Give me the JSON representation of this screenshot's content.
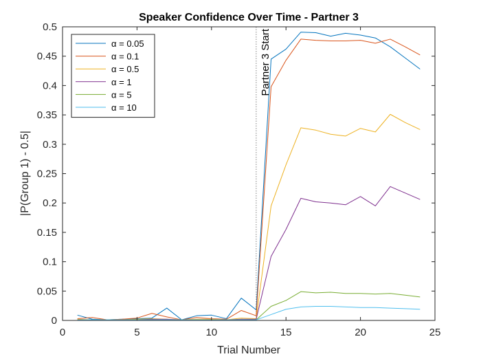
{
  "chart_data": {
    "type": "line",
    "title": "Speaker Confidence Over Time - Partner 3",
    "xlabel": "Trial Number",
    "ylabel": "|P(Group 1) - 0.5|",
    "xlim": [
      0,
      25
    ],
    "ylim": [
      0,
      0.5
    ],
    "xticks": [
      0,
      5,
      10,
      15,
      20,
      25
    ],
    "yticks": [
      0,
      0.05,
      0.1,
      0.15,
      0.2,
      0.25,
      0.3,
      0.35,
      0.4,
      0.45,
      0.5
    ],
    "grid": false,
    "legend_position": "top-left",
    "x": [
      1,
      2,
      3,
      4,
      5,
      6,
      7,
      8,
      9,
      10,
      11,
      12,
      13,
      14,
      15,
      16,
      17,
      18,
      19,
      20,
      21,
      22,
      23,
      24
    ],
    "series": [
      {
        "name": "α = 0.05",
        "color": "#0072BD",
        "values": [
          0.009,
          0.002,
          0.001,
          0.002,
          0.003,
          0.004,
          0.021,
          0.001,
          0.008,
          0.009,
          0.003,
          0.038,
          0.018,
          0.445,
          0.462,
          0.491,
          0.49,
          0.484,
          0.489,
          0.486,
          0.481,
          0.466,
          0.447,
          0.428
        ]
      },
      {
        "name": "α = 0.1",
        "color": "#D95319",
        "values": [
          0.003,
          0.005,
          0.001,
          0.002,
          0.004,
          0.012,
          0.006,
          0.001,
          0.005,
          0.003,
          0.002,
          0.017,
          0.008,
          0.398,
          0.443,
          0.479,
          0.477,
          0.476,
          0.476,
          0.477,
          0.472,
          0.479,
          0.466,
          0.452
        ]
      },
      {
        "name": "α = 0.5",
        "color": "#EDB120",
        "values": [
          0.002,
          0.001,
          0.001,
          0.001,
          0.002,
          0.003,
          0.002,
          0.001,
          0.002,
          0.002,
          0.001,
          0.004,
          0.003,
          0.195,
          0.265,
          0.328,
          0.324,
          0.317,
          0.314,
          0.327,
          0.321,
          0.351,
          0.337,
          0.325
        ]
      },
      {
        "name": "α = 1",
        "color": "#7E2F8E",
        "values": [
          0.001,
          0.001,
          0.001,
          0.001,
          0.001,
          0.002,
          0.002,
          0.001,
          0.001,
          0.001,
          0.001,
          0.002,
          0.002,
          0.109,
          0.155,
          0.208,
          0.202,
          0.2,
          0.197,
          0.211,
          0.195,
          0.228,
          0.217,
          0.206
        ]
      },
      {
        "name": "α = 5",
        "color": "#77AC30",
        "values": [
          0.001,
          0.001,
          0.001,
          0.001,
          0.001,
          0.001,
          0.001,
          0.001,
          0.001,
          0.001,
          0.001,
          0.001,
          0.001,
          0.024,
          0.034,
          0.049,
          0.047,
          0.048,
          0.046,
          0.046,
          0.045,
          0.046,
          0.043,
          0.04
        ]
      },
      {
        "name": "α = 10",
        "color": "#4DBEEE",
        "values": [
          0.001,
          0.001,
          0.001,
          0.001,
          0.001,
          0.001,
          0.001,
          0.001,
          0.001,
          0.001,
          0.001,
          0.001,
          0.001,
          0.01,
          0.019,
          0.023,
          0.024,
          0.024,
          0.023,
          0.022,
          0.022,
          0.021,
          0.02,
          0.019
        ]
      }
    ],
    "annotations": [
      {
        "type": "vertical-line",
        "x": 13,
        "label": "Partner 3 Start",
        "style": "dotted",
        "color": "#808080"
      }
    ]
  }
}
